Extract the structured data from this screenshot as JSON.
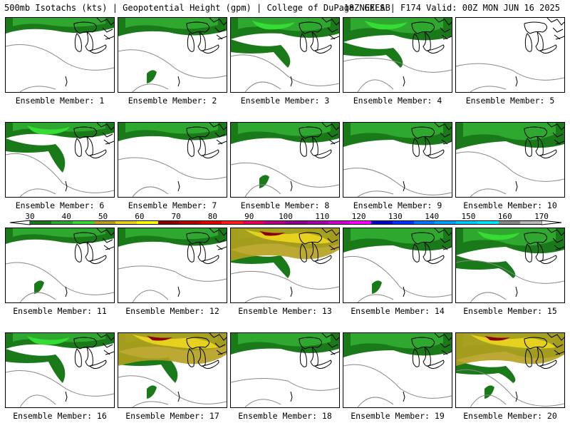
{
  "header": {
    "left": "500mb Isotachs (kts) | Geopotential Height (gpm) | College of DuPage NEXLAB",
    "right": "18Z GEFS | F174 Valid: 00Z MON JUN 16 2025"
  },
  "colorbar": {
    "ticks": [
      "30",
      "40",
      "50",
      "60",
      "70",
      "80",
      "90",
      "100",
      "110",
      "120",
      "130",
      "140",
      "150",
      "160",
      "170"
    ],
    "colors": [
      "#1a7a1a",
      "#2ea82e",
      "#34dc34",
      "#b4a01e",
      "#e6d21e",
      "#ffff00",
      "#8b0000",
      "#b40000",
      "#e10000",
      "#ff1e1e",
      "#e6005a",
      "#b40082",
      "#8c008c",
      "#aa00aa",
      "#d200d2",
      "#ff00ff",
      "#0000c8",
      "#0032ff",
      "#0078ff",
      "#00a0ff",
      "#00c8ff",
      "#00e6ff",
      "#888888",
      "#bbbbbb"
    ]
  },
  "members": [
    {
      "caption": "Ensemble Member: 1",
      "wind": "low"
    },
    {
      "caption": "Ensemble Member: 2",
      "wind": "low"
    },
    {
      "caption": "Ensemble Member: 3",
      "wind": "mid"
    },
    {
      "caption": "Ensemble Member: 4",
      "wind": "mid"
    },
    {
      "caption": "Ensemble Member: 5",
      "wind": "none"
    },
    {
      "caption": "Ensemble Member: 6",
      "wind": "mid"
    },
    {
      "caption": "Ensemble Member: 7",
      "wind": "low"
    },
    {
      "caption": "Ensemble Member: 8",
      "wind": "low"
    },
    {
      "caption": "Ensemble Member: 9",
      "wind": "low"
    },
    {
      "caption": "Ensemble Member: 10",
      "wind": "low"
    },
    {
      "caption": "Ensemble Member: 11",
      "wind": "low"
    },
    {
      "caption": "Ensemble Member: 12",
      "wind": "low"
    },
    {
      "caption": "Ensemble Member: 13",
      "wind": "high"
    },
    {
      "caption": "Ensemble Member: 14",
      "wind": "low"
    },
    {
      "caption": "Ensemble Member: 15",
      "wind": "mid"
    },
    {
      "caption": "Ensemble Member: 16",
      "wind": "mid"
    },
    {
      "caption": "Ensemble Member: 17",
      "wind": "high"
    },
    {
      "caption": "Ensemble Member: 18",
      "wind": "low"
    },
    {
      "caption": "Ensemble Member: 19",
      "wind": "low"
    },
    {
      "caption": "Ensemble Member: 20",
      "wind": "high"
    }
  ]
}
